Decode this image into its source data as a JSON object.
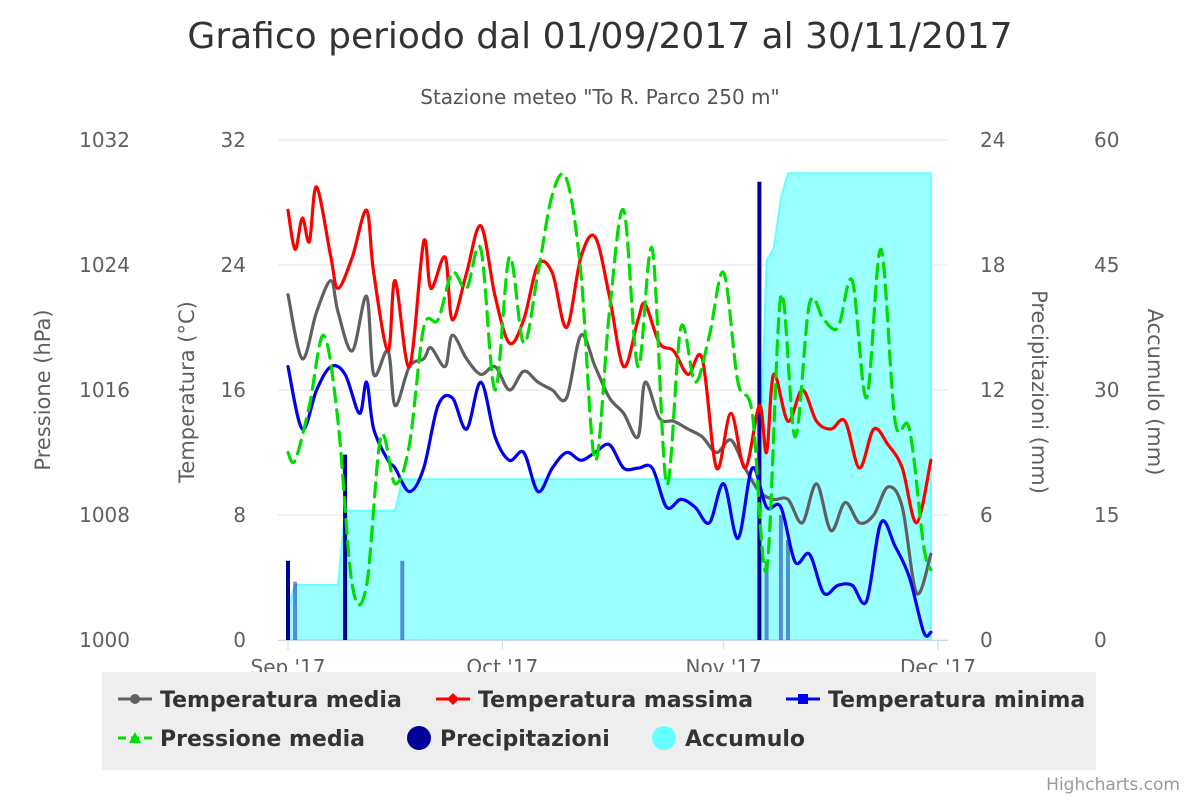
{
  "chart_data": {
    "type": "line",
    "title": "Grafico periodo dal 01/09/2017 al 30/11/2017",
    "subtitle": "Stazione meteo \"To R. Parco 250 m\"",
    "credits": "Highcharts.com",
    "x_ticks": [
      "Sep '17",
      "Oct '17",
      "Nov '17",
      "Dec '17"
    ],
    "x_range": [
      "2017-09-01",
      "2017-12-01"
    ],
    "axes": {
      "pressure": {
        "title": "Pressione (hPa)",
        "min": 1000,
        "max": 1032,
        "ticks": [
          "1000",
          "1008",
          "1016",
          "1024",
          "1032"
        ],
        "side": "left"
      },
      "temperature": {
        "title": "Temperatura (°C)",
        "min": 0,
        "max": 32,
        "ticks": [
          "0",
          "8",
          "16",
          "24",
          "32"
        ],
        "side": "left"
      },
      "precipitation": {
        "title": "Precipitazioni (mm)",
        "min": 0,
        "max": 24,
        "ticks": [
          "0",
          "6",
          "12",
          "18",
          "24"
        ],
        "side": "right"
      },
      "accumulation": {
        "title": "Accumulo (mm)",
        "min": 0,
        "max": 60,
        "ticks": [
          "0",
          "15",
          "30",
          "45",
          "60"
        ],
        "side": "right"
      }
    },
    "grid": true,
    "legend_position": "bottom",
    "series": [
      {
        "name": "Temperatura media",
        "kind": "spline",
        "axis": "temperature",
        "color": "#606060",
        "marker": "circle",
        "x": [
          "2017-09-01",
          "2017-09-03",
          "2017-09-05",
          "2017-09-07",
          "2017-09-08",
          "2017-09-10",
          "2017-09-12",
          "2017-09-13",
          "2017-09-15",
          "2017-09-16",
          "2017-09-18",
          "2017-09-20",
          "2017-09-21",
          "2017-09-23",
          "2017-09-24",
          "2017-09-26",
          "2017-09-28",
          "2017-09-30",
          "2017-10-02",
          "2017-10-04",
          "2017-10-06",
          "2017-10-08",
          "2017-10-10",
          "2017-10-12",
          "2017-10-14",
          "2017-10-16",
          "2017-10-18",
          "2017-10-20",
          "2017-10-21",
          "2017-10-23",
          "2017-10-25",
          "2017-10-27",
          "2017-10-29",
          "2017-10-31",
          "2017-11-02",
          "2017-11-04",
          "2017-11-06",
          "2017-11-08",
          "2017-11-10",
          "2017-11-12",
          "2017-11-14",
          "2017-11-16",
          "2017-11-18",
          "2017-11-20",
          "2017-11-22",
          "2017-11-24",
          "2017-11-26",
          "2017-11-28",
          "2017-11-30"
        ],
        "values": [
          22.1,
          18.0,
          21.0,
          23.0,
          21.0,
          18.5,
          22.0,
          17.0,
          18.5,
          15.0,
          17.5,
          18.0,
          18.7,
          17.5,
          19.5,
          18.0,
          17.0,
          17.5,
          16.0,
          17.2,
          16.5,
          16.0,
          15.5,
          19.5,
          17.5,
          15.5,
          14.5,
          13.0,
          16.5,
          14.2,
          14.0,
          13.5,
          13.0,
          12.0,
          12.8,
          11.0,
          9.5,
          9.0,
          9.0,
          7.5,
          10.0,
          7.0,
          8.8,
          7.5,
          8.0,
          9.8,
          8.5,
          3.0,
          5.5
        ]
      },
      {
        "name": "Temperatura massima",
        "kind": "spline",
        "axis": "temperature",
        "color": "#ff0000",
        "marker": "diamond",
        "x": [
          "2017-09-01",
          "2017-09-02",
          "2017-09-03",
          "2017-09-04",
          "2017-09-05",
          "2017-09-07",
          "2017-09-08",
          "2017-09-10",
          "2017-09-12",
          "2017-09-13",
          "2017-09-15",
          "2017-09-16",
          "2017-09-18",
          "2017-09-20",
          "2017-09-21",
          "2017-09-23",
          "2017-09-24",
          "2017-09-26",
          "2017-09-28",
          "2017-09-30",
          "2017-10-02",
          "2017-10-04",
          "2017-10-06",
          "2017-10-08",
          "2017-10-10",
          "2017-10-12",
          "2017-10-14",
          "2017-10-16",
          "2017-10-18",
          "2017-10-20",
          "2017-10-21",
          "2017-10-23",
          "2017-10-25",
          "2017-10-27",
          "2017-10-29",
          "2017-10-31",
          "2017-11-02",
          "2017-11-04",
          "2017-11-06",
          "2017-11-07",
          "2017-11-08",
          "2017-11-10",
          "2017-11-12",
          "2017-11-14",
          "2017-11-16",
          "2017-11-18",
          "2017-11-20",
          "2017-11-22",
          "2017-11-24",
          "2017-11-26",
          "2017-11-28",
          "2017-11-30"
        ],
        "values": [
          27.5,
          25.0,
          27.0,
          25.5,
          29.0,
          24.5,
          22.5,
          24.5,
          27.5,
          23.5,
          18.5,
          23.0,
          17.5,
          25.5,
          22.5,
          24.5,
          20.5,
          23.5,
          26.5,
          22.0,
          19.0,
          20.5,
          24.0,
          23.5,
          20.0,
          24.5,
          25.8,
          22.0,
          17.5,
          20.5,
          21.5,
          19.0,
          18.5,
          17.0,
          18.0,
          11.0,
          14.5,
          11.0,
          15.0,
          12.0,
          17.0,
          14.0,
          16.0,
          14.0,
          13.5,
          14.0,
          11.0,
          13.5,
          12.5,
          11.0,
          7.5,
          11.5
        ]
      },
      {
        "name": "Temperatura minima",
        "kind": "spline",
        "axis": "temperature",
        "color": "#0000ee",
        "marker": "square",
        "x": [
          "2017-09-01",
          "2017-09-03",
          "2017-09-05",
          "2017-09-07",
          "2017-09-09",
          "2017-09-11",
          "2017-09-12",
          "2017-09-13",
          "2017-09-15",
          "2017-09-16",
          "2017-09-18",
          "2017-09-20",
          "2017-09-22",
          "2017-09-24",
          "2017-09-26",
          "2017-09-28",
          "2017-09-30",
          "2017-10-02",
          "2017-10-04",
          "2017-10-06",
          "2017-10-08",
          "2017-10-10",
          "2017-10-12",
          "2017-10-14",
          "2017-10-16",
          "2017-10-18",
          "2017-10-20",
          "2017-10-22",
          "2017-10-24",
          "2017-10-26",
          "2017-10-28",
          "2017-10-30",
          "2017-11-01",
          "2017-11-03",
          "2017-11-05",
          "2017-11-07",
          "2017-11-09",
          "2017-11-11",
          "2017-11-13",
          "2017-11-15",
          "2017-11-17",
          "2017-11-19",
          "2017-11-21",
          "2017-11-23",
          "2017-11-25",
          "2017-11-27",
          "2017-11-29",
          "2017-11-30"
        ],
        "values": [
          17.5,
          13.5,
          16.0,
          17.5,
          17.0,
          14.5,
          16.5,
          13.5,
          11.5,
          11.0,
          9.5,
          11.0,
          15.0,
          15.5,
          13.5,
          16.5,
          13.0,
          11.5,
          12.0,
          9.5,
          11.0,
          12.0,
          11.5,
          12.0,
          12.5,
          11.0,
          11.0,
          11.0,
          8.5,
          9.0,
          8.5,
          7.5,
          10.0,
          6.5,
          11.0,
          8.5,
          8.5,
          5.0,
          5.5,
          3.0,
          3.5,
          3.5,
          2.5,
          7.5,
          6.0,
          4.0,
          0.5,
          0.5
        ]
      },
      {
        "name": "Pressione media",
        "kind": "spline",
        "axis": "pressure",
        "color": "#00dd00",
        "dash": true,
        "marker": "triangle",
        "x": [
          "2017-09-01",
          "2017-09-02",
          "2017-09-04",
          "2017-09-06",
          "2017-09-08",
          "2017-09-10",
          "2017-09-12",
          "2017-09-14",
          "2017-09-16",
          "2017-09-18",
          "2017-09-20",
          "2017-09-22",
          "2017-09-24",
          "2017-09-26",
          "2017-09-28",
          "2017-09-30",
          "2017-10-02",
          "2017-10-04",
          "2017-10-06",
          "2017-10-08",
          "2017-10-10",
          "2017-10-12",
          "2017-10-14",
          "2017-10-16",
          "2017-10-18",
          "2017-10-20",
          "2017-10-22",
          "2017-10-24",
          "2017-10-26",
          "2017-10-28",
          "2017-10-30",
          "2017-11-01",
          "2017-11-03",
          "2017-11-05",
          "2017-11-07",
          "2017-11-09",
          "2017-11-11",
          "2017-11-13",
          "2017-11-15",
          "2017-11-17",
          "2017-11-19",
          "2017-11-21",
          "2017-11-23",
          "2017-11-25",
          "2017-11-27",
          "2017-11-29",
          "2017-11-30"
        ],
        "values": [
          1012.0,
          1011.5,
          1015.0,
          1019.5,
          1014.0,
          1003.5,
          1003.5,
          1013.0,
          1010.0,
          1012.5,
          1020.0,
          1020.5,
          1023.5,
          1022.5,
          1025.0,
          1016.0,
          1024.5,
          1019.0,
          1023.5,
          1028.5,
          1029.5,
          1023.5,
          1011.5,
          1021.0,
          1027.5,
          1017.5,
          1025.0,
          1010.0,
          1020.0,
          1016.5,
          1019.5,
          1023.5,
          1016.5,
          1014.5,
          1004.5,
          1022.0,
          1013.0,
          1021.5,
          1020.5,
          1020.0,
          1023.0,
          1015.5,
          1025.0,
          1014.0,
          1013.5,
          1006.0,
          1004.5
        ]
      },
      {
        "name": "Precipitazioni",
        "kind": "column",
        "axis": "precipitation",
        "color": "#000099",
        "legend_color": "#000099",
        "x": [
          "2017-09-01",
          "2017-09-02",
          "2017-09-09",
          "2017-09-17",
          "2017-11-06",
          "2017-11-07",
          "2017-11-09",
          "2017-11-10"
        ],
        "values": [
          3.8,
          2.8,
          8.9,
          3.8,
          22.0,
          3.8,
          6.0,
          4.8
        ]
      },
      {
        "name": "Accumulo",
        "kind": "area",
        "axis": "accumulation",
        "color": "#99ffff",
        "legend_color": "#66ffff",
        "x": [
          "2017-09-01",
          "2017-09-02",
          "2017-09-08",
          "2017-09-09",
          "2017-09-16",
          "2017-09-17",
          "2017-10-31",
          "2017-11-06",
          "2017-11-07",
          "2017-11-08",
          "2017-11-09",
          "2017-11-10",
          "2017-11-30"
        ],
        "values": [
          3.8,
          6.6,
          6.6,
          15.5,
          15.5,
          19.3,
          19.3,
          19.3,
          45.5,
          47.0,
          53.0,
          56.0,
          56.0
        ]
      }
    ]
  }
}
